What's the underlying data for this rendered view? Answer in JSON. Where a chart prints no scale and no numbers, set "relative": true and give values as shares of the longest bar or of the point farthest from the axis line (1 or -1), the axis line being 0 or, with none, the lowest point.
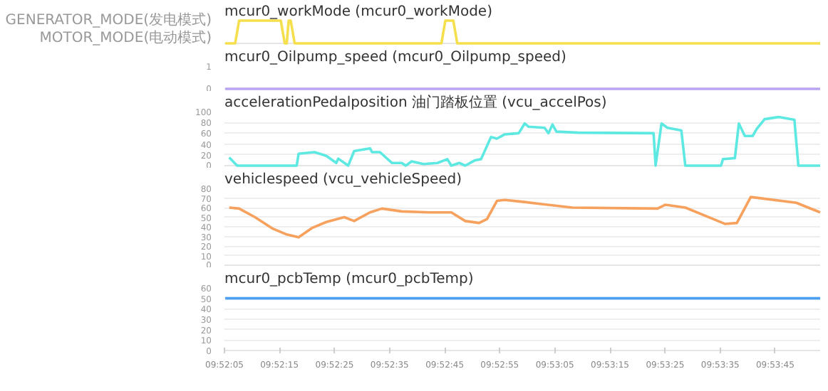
{
  "chart_data": [
    {
      "type": "line",
      "title": "mcur0_workMode (mcur0_workMode)",
      "xlim": [
        9.86806,
        9.8981
      ],
      "relative": true,
      "y_categories": [
        "GENERATOR_MODE(发电模式)",
        "MOTOR_MODE(电动模式)"
      ],
      "tick_labels": "y",
      "series": [
        {
          "color": "#f5df4d",
          "x": [
            9.8681,
            9.8686,
            9.8688,
            9.8709,
            9.8711,
            9.8712,
            9.8713,
            9.8714,
            9.8716,
            9.879,
            9.8792,
            9.8796,
            9.8798,
            9.8981
          ],
          "values": [
            0,
            0,
            1,
            1,
            0,
            0,
            1,
            1,
            0,
            0,
            1,
            1,
            0,
            0
          ]
        }
      ]
    },
    {
      "type": "line",
      "title": "mcur0_Oilpump_speed (mcur0_Oilpump_speed)",
      "xlim": [
        9.86806,
        9.8981
      ],
      "ylim": [
        0,
        1
      ],
      "yticks": [
        0,
        1
      ],
      "tick_labels": "y",
      "series": [
        {
          "color": "#b9a5f2",
          "x": [
            9.8681,
            9.8981
          ],
          "values": [
            0,
            0
          ]
        }
      ]
    },
    {
      "type": "line",
      "title": "accelerationPedalposition 油门踏板位置 (vcu_accelPos)",
      "xlim": [
        9.86806,
        9.8981
      ],
      "ylim": [
        0,
        100
      ],
      "yticks": [
        0,
        20,
        40,
        60,
        80,
        100
      ],
      "tick_labels": "y",
      "grid": "y",
      "series": [
        {
          "color": "#5ee8e2",
          "x": [
            9.8683,
            9.8687,
            9.8717,
            9.8718,
            9.8726,
            9.8732,
            9.8737,
            9.8738,
            9.8743,
            9.8746,
            9.8754,
            9.8755,
            9.8759,
            9.8765,
            9.877,
            9.8772,
            9.8775,
            9.8781,
            9.8788,
            9.8793,
            9.8795,
            9.8799,
            9.8802,
            9.8807,
            9.881,
            9.8815,
            9.8818,
            9.8822,
            9.8829,
            9.8832,
            9.8834,
            9.8842,
            9.8844,
            9.8846,
            9.8848,
            9.8859,
            9.8897,
            9.8898,
            9.8901,
            9.8904,
            9.8911,
            9.8913,
            9.8931,
            9.8932,
            9.8938,
            9.894,
            9.8943,
            9.8947,
            9.8949,
            9.8953,
            9.896,
            9.8968,
            9.897,
            9.8981
          ],
          "values": [
            15,
            0,
            0,
            22,
            25,
            18,
            5,
            13,
            0,
            27,
            32,
            25,
            25,
            5,
            5,
            0,
            8,
            3,
            5,
            12,
            0,
            5,
            0,
            10,
            12,
            53,
            50,
            58,
            60,
            78,
            72,
            70,
            60,
            76,
            63,
            61,
            60,
            0,
            78,
            70,
            65,
            0,
            0,
            12,
            14,
            78,
            55,
            55,
            68,
            86,
            90,
            85,
            0,
            0
          ]
        }
      ]
    },
    {
      "type": "line",
      "title": "vehiclespeed (vcu_vehicleSpeed)",
      "xlim": [
        9.86806,
        9.8981
      ],
      "ylim": [
        0,
        80
      ],
      "yticks": [
        0,
        10,
        20,
        30,
        40,
        50,
        60,
        70,
        80
      ],
      "tick_labels": "y",
      "grid": "y",
      "series": [
        {
          "color": "#f7a15e",
          "x": [
            9.8683,
            9.8688,
            9.8696,
            9.8705,
            9.8712,
            9.8718,
            9.8725,
            9.8732,
            9.8741,
            9.8746,
            9.8754,
            9.876,
            9.877,
            9.8784,
            9.8795,
            9.8802,
            9.8809,
            9.8813,
            9.8818,
            9.8822,
            9.8831,
            9.8856,
            9.8899,
            9.8903,
            9.8913,
            9.8926,
            9.8933,
            9.8939,
            9.8946,
            9.8969,
            9.8981
          ],
          "values": [
            60,
            59,
            50,
            38,
            32,
            29,
            39,
            45,
            50,
            46,
            55,
            59,
            56,
            55,
            55,
            46,
            44,
            48,
            67,
            68,
            66,
            60,
            59,
            63,
            60,
            49,
            43,
            44,
            71,
            65,
            55
          ]
        }
      ]
    },
    {
      "type": "line",
      "title": "mcur0_pcbTemp (mcur0_pcbTemp)",
      "xlim": [
        9.86806,
        9.8981
      ],
      "xticks": [
        {
          "value": 9.86806,
          "label": "09:52:05"
        },
        {
          "value": 9.87083,
          "label": "09:52:15"
        },
        {
          "value": 9.87361,
          "label": "09:52:25"
        },
        {
          "value": 9.87639,
          "label": "09:52:35"
        },
        {
          "value": 9.87917,
          "label": "09:52:45"
        },
        {
          "value": 9.88194,
          "label": "09:52:55"
        },
        {
          "value": 9.88472,
          "label": "09:53:05"
        },
        {
          "value": 9.8875,
          "label": "09:53:15"
        },
        {
          "value": 9.89028,
          "label": "09:53:25"
        },
        {
          "value": 9.89306,
          "label": "09:53:35"
        },
        {
          "value": 9.89583,
          "label": "09:53:45"
        }
      ],
      "ylim": [
        0,
        60
      ],
      "yticks": [
        0,
        10,
        20,
        30,
        40,
        50,
        60
      ],
      "grid": "y",
      "series": [
        {
          "color": "#4d9ff0",
          "x": [
            9.8681,
            9.8981
          ],
          "values": [
            50,
            50
          ]
        }
      ]
    }
  ]
}
